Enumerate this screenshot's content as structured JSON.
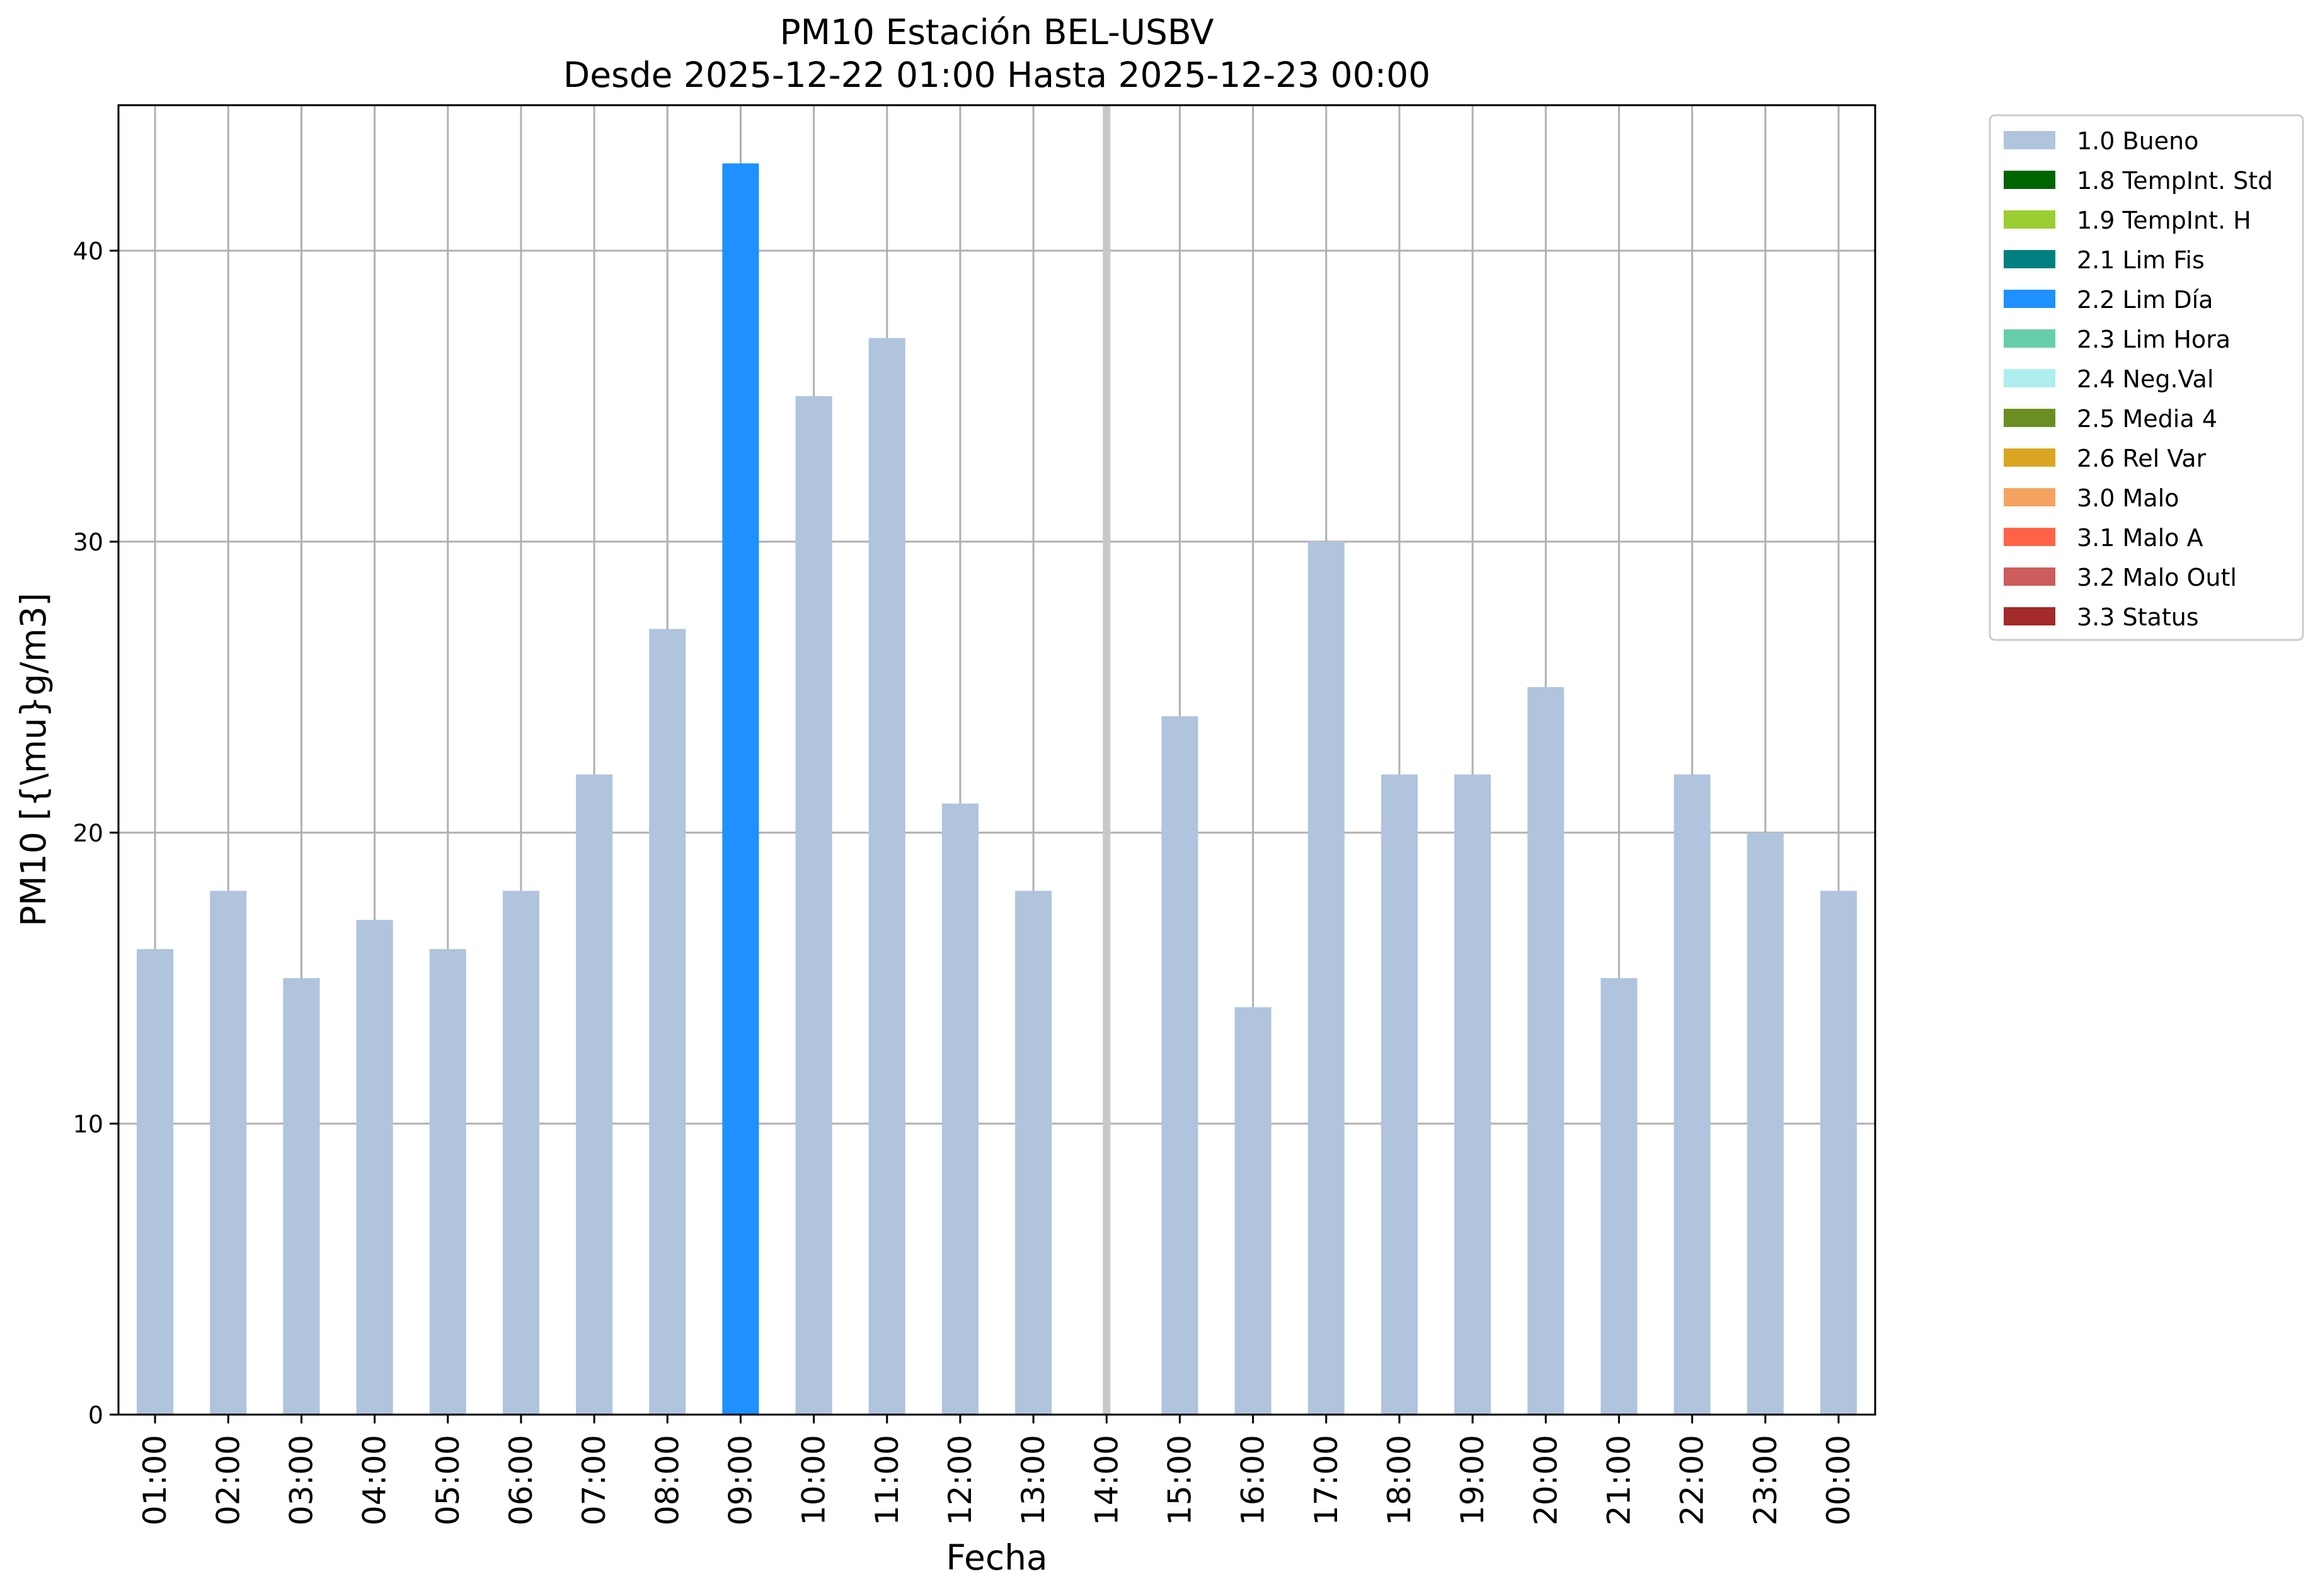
{
  "chart_data": {
    "type": "bar",
    "title": "PM10 Estación BEL-USBV",
    "subtitle": "Desde 2025-12-22 01:00 Hasta 2025-12-23 00:00",
    "xlabel": "Fecha",
    "ylabel": "PM10 [{\\mu}g/m3]",
    "ylim": [
      0,
      45
    ],
    "yticks": [
      0,
      10,
      20,
      30,
      40
    ],
    "grid": true,
    "legend_position": "outside-right-top",
    "categories": [
      "01:00",
      "02:00",
      "03:00",
      "04:00",
      "05:00",
      "06:00",
      "07:00",
      "08:00",
      "09:00",
      "10:00",
      "11:00",
      "12:00",
      "13:00",
      "14:00",
      "15:00",
      "16:00",
      "17:00",
      "18:00",
      "19:00",
      "20:00",
      "21:00",
      "22:00",
      "23:00",
      "00:00"
    ],
    "values": [
      16,
      18,
      15,
      17,
      16,
      18,
      22,
      27,
      43,
      35,
      37,
      21,
      18,
      null,
      24,
      14,
      30,
      22,
      22,
      25,
      15,
      22,
      20,
      18
    ],
    "flags": [
      "1.0",
      "1.0",
      "1.0",
      "1.0",
      "1.0",
      "1.0",
      "1.0",
      "1.0",
      "2.2",
      "1.0",
      "1.0",
      "1.0",
      "1.0",
      null,
      "1.0",
      "1.0",
      "1.0",
      "1.0",
      "1.0",
      "1.0",
      "1.0",
      "1.0",
      "1.0",
      "1.0"
    ],
    "missing_marker_color": "#c8c8c8",
    "legend": [
      {
        "label": "1.0 Bueno",
        "color": "#b0c4de"
      },
      {
        "label": "1.8 TempInt. Std",
        "color": "#006400"
      },
      {
        "label": "1.9 TempInt. H",
        "color": "#9acd32"
      },
      {
        "label": "2.1 Lim Fis",
        "color": "#008080"
      },
      {
        "label": "2.2 Lim Día",
        "color": "#1e90ff"
      },
      {
        "label": "2.3 Lim Hora",
        "color": "#66cdaa"
      },
      {
        "label": "2.4 Neg.Val",
        "color": "#afeeee"
      },
      {
        "label": "2.5 Media 4",
        "color": "#6b8e23"
      },
      {
        "label": "2.6 Rel Var",
        "color": "#daa520"
      },
      {
        "label": "3.0 Malo",
        "color": "#f4a460"
      },
      {
        "label": "3.1 Malo A",
        "color": "#ff6347"
      },
      {
        "label": "3.2 Malo Outl",
        "color": "#cd5c5c"
      },
      {
        "label": "3.3 Status",
        "color": "#a52a2a"
      }
    ]
  }
}
